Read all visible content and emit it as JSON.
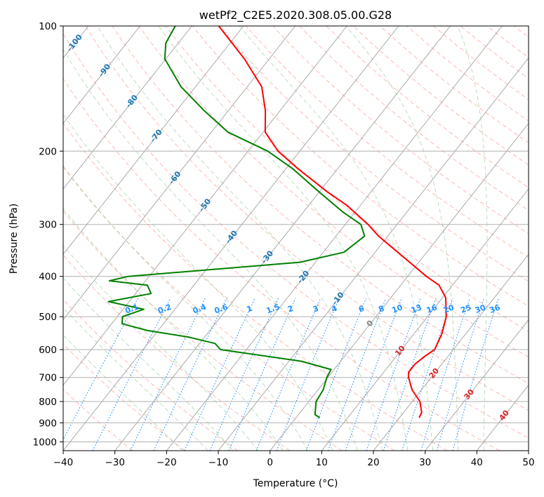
{
  "chart_data": {
    "type": "skew-t",
    "title": "wetPf2_C2E5.2020.308.05.00.G28",
    "xlabel": "Temperature (°C)",
    "ylabel": "Pressure (hPa)",
    "xlim": [
      -40,
      50
    ],
    "ylim": [
      1050,
      100
    ],
    "x_ticks": [
      "−40",
      "−30",
      "−20",
      "−10",
      "0",
      "10",
      "20",
      "30",
      "40",
      "50"
    ],
    "y_ticks": [
      "100",
      "200",
      "300",
      "400",
      "500",
      "600",
      "700",
      "800",
      "900",
      "1000"
    ],
    "grid": true,
    "colors": {
      "temperature": "#ff0000",
      "dewpoint": "#008000",
      "isotherms": "#aaaaaa",
      "dry_adiabats": "#fa8072",
      "moist_adiabats": "#90c890",
      "mixing_ratio": "#1e90ff",
      "isotherm_labels": "#1f77b4",
      "warm_labels": "#d62728"
    },
    "series": [
      {
        "name": "temperature",
        "points": [
          {
            "p": 875,
            "t": 23.8
          },
          {
            "p": 850,
            "t": 23.5
          },
          {
            "p": 800,
            "t": 21.5
          },
          {
            "p": 750,
            "t": 18.2
          },
          {
            "p": 700,
            "t": 15.6
          },
          {
            "p": 680,
            "t": 14.8
          },
          {
            "p": 650,
            "t": 14.8
          },
          {
            "p": 620,
            "t": 15.6
          },
          {
            "p": 600,
            "t": 16.4
          },
          {
            "p": 550,
            "t": 15.4
          },
          {
            "p": 500,
            "t": 13.6
          },
          {
            "p": 450,
            "t": 10.6
          },
          {
            "p": 420,
            "t": 7.4
          },
          {
            "p": 400,
            "t": 3.6
          },
          {
            "p": 350,
            "t": -5.6
          },
          {
            "p": 320,
            "t": -11.8
          },
          {
            "p": 300,
            "t": -15.6
          },
          {
            "p": 270,
            "t": -22.6
          },
          {
            "p": 250,
            "t": -28.6
          },
          {
            "p": 220,
            "t": -37.8
          },
          {
            "p": 200,
            "t": -44.2
          },
          {
            "p": 180,
            "t": -49.6
          },
          {
            "p": 160,
            "t": -52.8
          },
          {
            "p": 140,
            "t": -57.2
          },
          {
            "p": 120,
            "t": -64.8
          },
          {
            "p": 100,
            "t": -74.8
          }
        ]
      },
      {
        "name": "dewpoint",
        "points": [
          {
            "p": 875,
            "t": 4.6
          },
          {
            "p": 860,
            "t": 3.2
          },
          {
            "p": 800,
            "t": 1.4
          },
          {
            "p": 750,
            "t": 1.0
          },
          {
            "p": 700,
            "t": -0.2
          },
          {
            "p": 670,
            "t": -0.6
          },
          {
            "p": 640,
            "t": -7.6
          },
          {
            "p": 600,
            "t": -25.0
          },
          {
            "p": 580,
            "t": -27.0
          },
          {
            "p": 560,
            "t": -33.0
          },
          {
            "p": 540,
            "t": -42.0
          },
          {
            "p": 520,
            "t": -48.0
          },
          {
            "p": 500,
            "t": -49.0
          },
          {
            "p": 480,
            "t": -46.0
          },
          {
            "p": 460,
            "t": -54.0
          },
          {
            "p": 440,
            "t": -47.0
          },
          {
            "p": 420,
            "t": -49.0
          },
          {
            "p": 410,
            "t": -57.0
          },
          {
            "p": 400,
            "t": -54.0
          },
          {
            "p": 390,
            "t": -44.0
          },
          {
            "p": 370,
            "t": -23.0
          },
          {
            "p": 350,
            "t": -16.0
          },
          {
            "p": 320,
            "t": -14.5
          },
          {
            "p": 300,
            "t": -17.0
          },
          {
            "p": 280,
            "t": -22.4
          },
          {
            "p": 250,
            "t": -30.2
          },
          {
            "p": 220,
            "t": -38.8
          },
          {
            "p": 200,
            "t": -46.2
          },
          {
            "p": 180,
            "t": -56.8
          },
          {
            "p": 160,
            "t": -64.6
          },
          {
            "p": 140,
            "t": -72.8
          },
          {
            "p": 120,
            "t": -80.2
          },
          {
            "p": 110,
            "t": -82.4
          },
          {
            "p": 100,
            "t": -83.2
          }
        ]
      }
    ],
    "isotherm_labels": [
      "-100",
      "-90",
      "-80",
      "-70",
      "-60",
      "-50",
      "-40",
      "-30",
      "-20",
      "-10"
    ],
    "isotherm_label_values": [
      -100,
      -90,
      -80,
      -70,
      -60,
      -50,
      -40,
      -30,
      -20,
      -10
    ],
    "warm_isotherm_labels": [
      "0",
      "10",
      "20",
      "30",
      "40"
    ],
    "warm_isotherm_label_values": [
      0,
      10,
      20,
      30,
      40
    ],
    "mixing_ratio_labels": [
      "0.1",
      "0.2",
      "0.4",
      "0.6",
      "1",
      "1.5",
      "2",
      "3",
      "4",
      "6",
      "8",
      "10",
      "13",
      "16",
      "20",
      "25",
      "30",
      "36"
    ],
    "mixing_ratio_values": [
      0.1,
      0.2,
      0.4,
      0.6,
      1,
      1.5,
      2,
      3,
      4,
      6,
      8,
      10,
      13,
      16,
      20,
      25,
      30,
      36
    ]
  }
}
